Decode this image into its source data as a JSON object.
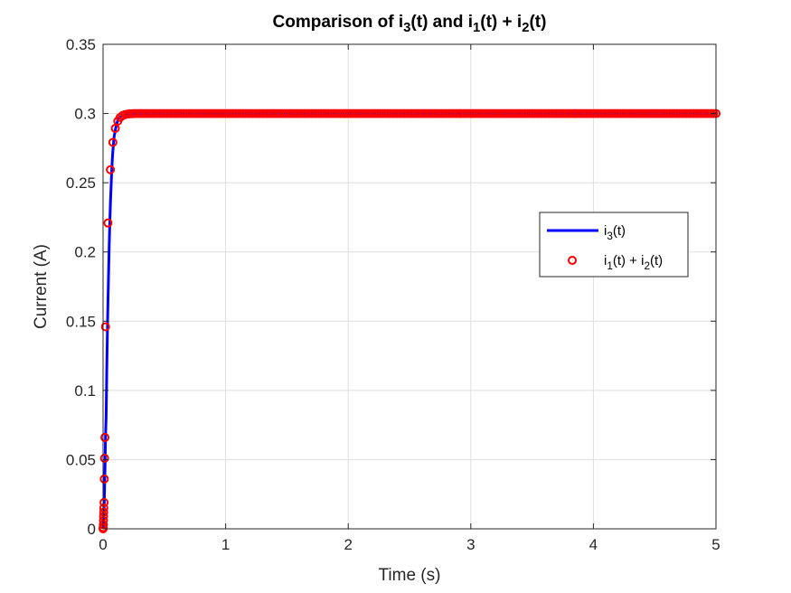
{
  "chart_data": {
    "type": "line",
    "title": "Comparison of i3(t) and i1(t) + i2(t)",
    "title_parts": [
      {
        "text": "Comparison of i",
        "sub": false
      },
      {
        "text": "3",
        "sub": true
      },
      {
        "text": "(t) and i",
        "sub": false
      },
      {
        "text": "1",
        "sub": true
      },
      {
        "text": "(t) + i",
        "sub": false
      },
      {
        "text": "2",
        "sub": true
      },
      {
        "text": "(t)",
        "sub": false
      }
    ],
    "xlabel": "Time (s)",
    "ylabel": "Current (A)",
    "xlim": [
      0,
      5
    ],
    "ylim": [
      0,
      0.35
    ],
    "x_ticks": [
      0,
      1,
      2,
      3,
      4,
      5
    ],
    "x_tick_labels": [
      "0",
      "1",
      "2",
      "3",
      "4",
      "5"
    ],
    "y_ticks": [
      0,
      0.05,
      0.1,
      0.15,
      0.2,
      0.25,
      0.3,
      0.35
    ],
    "y_tick_labels": [
      "0",
      "0.05",
      "0.1",
      "0.15",
      "0.2",
      "0.25",
      "0.3",
      "0.35"
    ],
    "grid": true,
    "legend_position": "right, above center",
    "series": [
      {
        "name": "i3(t)",
        "name_parts": [
          {
            "text": "i",
            "sub": false
          },
          {
            "text": "3",
            "sub": true
          },
          {
            "text": "(t)",
            "sub": false
          }
        ],
        "style": "solid-line",
        "color": "#0000ff",
        "x": [
          0,
          0.002,
          0.004,
          0.006,
          0.008,
          0.01,
          0.015,
          0.02,
          0.025,
          0.03,
          0.035,
          0.04,
          0.045,
          0.05,
          0.055,
          0.06,
          0.065,
          0.07,
          0.075,
          0.08,
          0.085,
          0.09,
          0.1,
          0.11,
          0.12,
          0.13,
          0.15,
          0.17,
          0.2,
          0.25,
          0.3,
          0.4,
          0.5,
          1,
          2,
          3,
          4,
          5
        ],
        "y": [
          0,
          0.002,
          0.005,
          0.009,
          0.015,
          0.02,
          0.04,
          0.066,
          0.081,
          0.113,
          0.14,
          0.164,
          0.184,
          0.204,
          0.221,
          0.235,
          0.246,
          0.257,
          0.266,
          0.273,
          0.278,
          0.283,
          0.288,
          0.292,
          0.295,
          0.297,
          0.298,
          0.299,
          0.2995,
          0.2998,
          0.2999,
          0.3,
          0.3,
          0.3,
          0.3,
          0.3,
          0.3,
          0.3
        ]
      },
      {
        "name": "i1(t) + i2(t)",
        "name_parts": [
          {
            "text": "i",
            "sub": false
          },
          {
            "text": "1",
            "sub": true
          },
          {
            "text": "(t) + i",
            "sub": false
          },
          {
            "text": "2",
            "sub": true
          },
          {
            "text": "(t)",
            "sub": false
          }
        ],
        "style": "circle-markers",
        "color": "#ff0000",
        "x_start": 0,
        "x_end": 5,
        "x_step": 0.02,
        "time_constant": 0.03,
        "y_final": 0.3,
        "early_x": [
          0,
          0.001,
          0.002,
          0.003,
          0.004,
          0.005,
          0.006,
          0.008,
          0.01,
          0.012,
          0.015
        ],
        "early_y": [
          0,
          0.001,
          0.003,
          0.006,
          0.009,
          0.012,
          0.015,
          0.019,
          0.036,
          0.051,
          0.066
        ]
      }
    ]
  }
}
